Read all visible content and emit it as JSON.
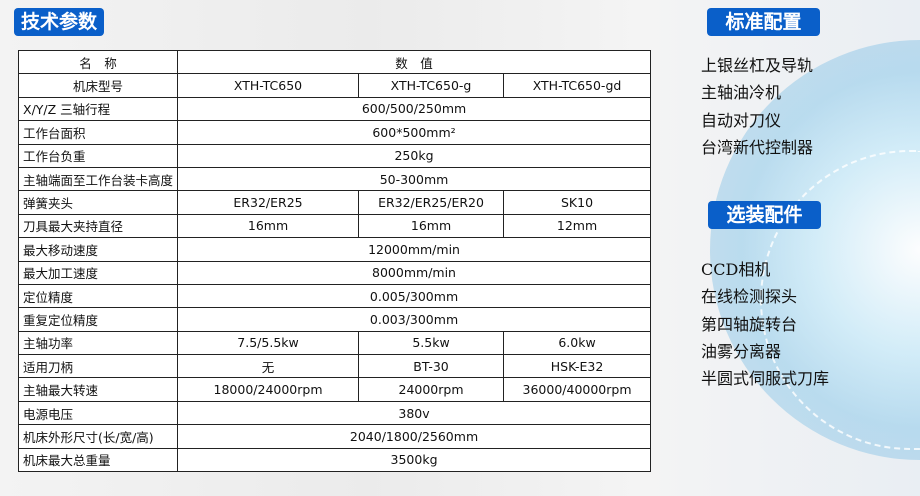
{
  "title": "技术参数",
  "standard": {
    "title": "标准配置",
    "items": [
      "上银丝杠及导轨",
      "主轴油冷机",
      "自动对刀仪",
      "台湾新代控制器"
    ]
  },
  "optional": {
    "title": "选装配件",
    "items": [
      "CCD相机",
      "在线检测探头",
      "第四轴旋转台",
      "油雾分离器",
      "半圆式伺服式刀库"
    ]
  },
  "table": {
    "header": [
      "名　称",
      "数　值"
    ],
    "rows": [
      {
        "name": "机床型号",
        "values": [
          "XTH-TC650",
          "XTH-TC650-g",
          "XTH-TC650-gd"
        ],
        "center": true
      },
      {
        "name": "X/Y/Z 三轴行程",
        "values": [
          "600/500/250mm"
        ]
      },
      {
        "name": "工作台面积",
        "values": [
          "600*500mm²"
        ]
      },
      {
        "name": "工作台负重",
        "values": [
          "250kg"
        ]
      },
      {
        "name": "主轴端面至工作台装卡高度",
        "values": [
          "50-300mm"
        ]
      },
      {
        "name": "弹簧夹头",
        "values": [
          "ER32/ER25",
          "ER32/ER25/ER20",
          "SK10"
        ]
      },
      {
        "name": "刀具最大夹持直径",
        "values": [
          "16mm",
          "16mm",
          "12mm"
        ]
      },
      {
        "name": "最大移动速度",
        "values": [
          "12000mm/min"
        ]
      },
      {
        "name": "最大加工速度",
        "values": [
          "8000mm/min"
        ]
      },
      {
        "name": "定位精度",
        "values": [
          "0.005/300mm"
        ]
      },
      {
        "name": "重复定位精度",
        "values": [
          "0.003/300mm"
        ]
      },
      {
        "name": "主轴功率",
        "values": [
          "7.5/5.5kw",
          "5.5kw",
          "6.0kw"
        ]
      },
      {
        "name": "适用刀柄",
        "values": [
          "无",
          "BT-30",
          "HSK-E32"
        ]
      },
      {
        "name": "主轴最大转速",
        "values": [
          "18000/24000rpm",
          "24000rpm",
          "36000/40000rpm"
        ]
      },
      {
        "name": "电源电压",
        "values": [
          "380v"
        ]
      },
      {
        "name": "机床外形尺寸(长/宽/高)",
        "values": [
          "2040/1800/2560mm"
        ]
      },
      {
        "name": "机床最大总重量",
        "values": [
          "3500kg"
        ]
      }
    ]
  },
  "colors": {
    "badge": "#0a5fc9"
  }
}
